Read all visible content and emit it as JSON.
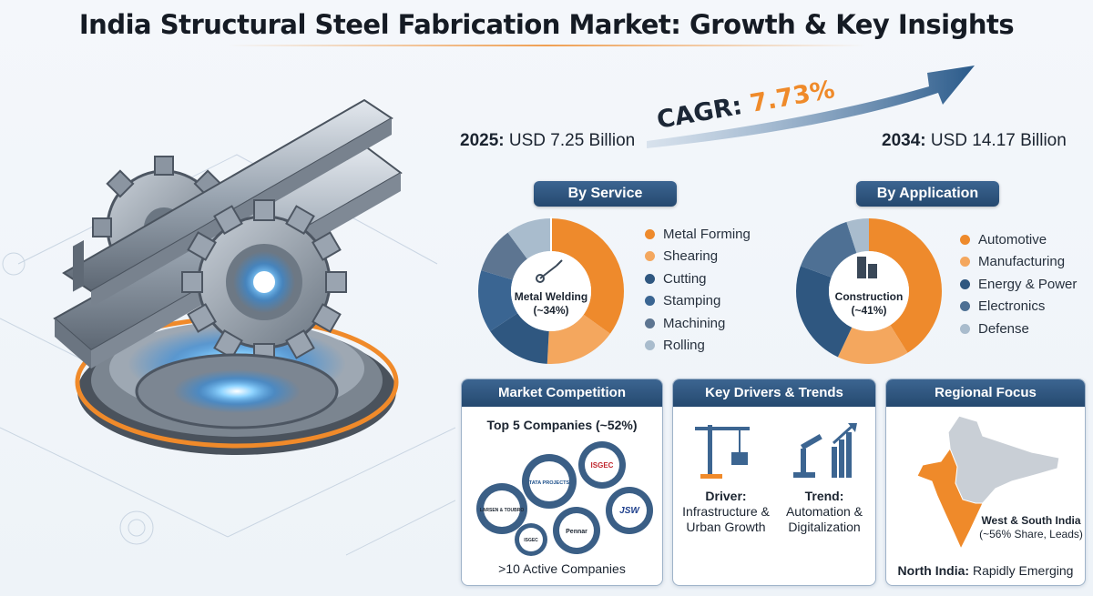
{
  "title": "India Structural Steel Fabrication Market: Growth & Key Insights",
  "stats": {
    "start_year": "2025:",
    "start_value": "USD 7.25 Billion",
    "end_year": "2034:",
    "end_value": "USD 14.17 Billion",
    "cagr_label": "CAGR:",
    "cagr_value": "7.73%"
  },
  "service": {
    "header": "By Service",
    "center_label": "Metal Welding",
    "center_value": "(~34%)",
    "items": [
      {
        "label": "Metal Forming",
        "color": "#ee8a2c"
      },
      {
        "label": "Shearing",
        "color": "#f4a75e"
      },
      {
        "label": "Cutting",
        "color": "#2f5780"
      },
      {
        "label": "Stamping",
        "color": "#3a6592"
      },
      {
        "label": "Machining",
        "color": "#5d7591"
      },
      {
        "label": "Rolling",
        "color": "#a9bccd"
      }
    ]
  },
  "application": {
    "header": "By Application",
    "center_label": "Construction",
    "center_value": "(~41%)",
    "items": [
      {
        "label": "Automotive",
        "color": "#ee8a2c"
      },
      {
        "label": "Manufacturing",
        "color": "#f4a75e"
      },
      {
        "label": "Energy & Power",
        "color": "#2f5780"
      },
      {
        "label": "Electronics",
        "color": "#4e7094"
      },
      {
        "label": "Defense",
        "color": "#a9bccd"
      }
    ]
  },
  "competition": {
    "header": "Market Competition",
    "subtitle": "Top 5 Companies (~52%)",
    "logos": [
      "LARSEN & TOUBRO",
      "TATA PROJECTS",
      "ISGEC",
      "JSW",
      "Pennar",
      "ISGEC"
    ],
    "footer": ">10 Active Companies"
  },
  "drivers": {
    "header": "Key Drivers & Trends",
    "driver_label": "Driver:",
    "driver_text_1": "Infrastructure &",
    "driver_text_2": "Urban Growth",
    "trend_label": "Trend:",
    "trend_text_1": "Automation &",
    "trend_text_2": "Digitalization"
  },
  "regional": {
    "header": "Regional Focus",
    "highlight_1": "West & South India",
    "highlight_2": "(~56% Share, Leads)",
    "footer_bold": "North India:",
    "footer_text": "Rapidly Emerging"
  },
  "colors": {
    "navy": "#2c5078",
    "orange": "#ef8a2a",
    "steel": "#8e99a6"
  }
}
